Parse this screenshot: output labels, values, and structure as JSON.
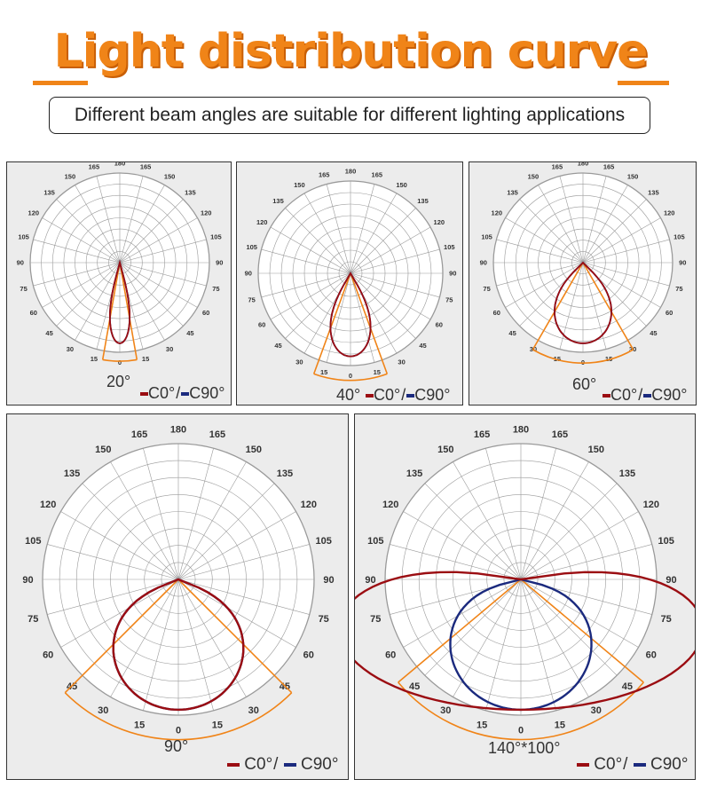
{
  "title": "Light distribution curve",
  "subtitle": "Different beam angles are suitable for different lighting applications",
  "colors": {
    "accent": "#f08418",
    "c0": "#9b0d12",
    "c90": "#1b2a7e",
    "grid": "#9a9a9a"
  },
  "legend": {
    "c0": "C0°",
    "sep": "/",
    "c90": "C90°"
  },
  "angle_labels": [
    "180",
    "165",
    "150",
    "135",
    "120",
    "105",
    "90",
    "75",
    "60",
    "45",
    "30",
    "15",
    "0",
    "15",
    "30",
    "45",
    "60",
    "75",
    "90",
    "105",
    "120",
    "135",
    "150",
    "165"
  ],
  "chart_data": [
    {
      "type": "polar",
      "beam_label": "20°",
      "beam_half_angle_deg": 10,
      "series": [
        {
          "name": "C0°",
          "half_angle_deg": 10,
          "lateral_extent": 1.0
        },
        {
          "name": "C90°",
          "half_angle_deg": 10,
          "lateral_extent": 1.0
        }
      ]
    },
    {
      "type": "polar",
      "beam_label": "40°",
      "beam_half_angle_deg": 20,
      "series": [
        {
          "name": "C0°",
          "half_angle_deg": 20,
          "lateral_extent": 1.0
        },
        {
          "name": "C90°",
          "half_angle_deg": 20,
          "lateral_extent": 1.0
        }
      ]
    },
    {
      "type": "polar",
      "beam_label": "60°",
      "beam_half_angle_deg": 30,
      "series": [
        {
          "name": "C0°",
          "half_angle_deg": 30,
          "lateral_extent": 1.0
        },
        {
          "name": "C90°",
          "half_angle_deg": 30,
          "lateral_extent": 1.0
        }
      ]
    },
    {
      "type": "polar",
      "beam_label": "90°",
      "beam_half_angle_deg": 45,
      "series": [
        {
          "name": "C0°",
          "half_angle_deg": 45,
          "lateral_extent": 1.0
        },
        {
          "name": "C90°",
          "half_angle_deg": 45,
          "lateral_extent": 1.0
        }
      ]
    },
    {
      "type": "polar",
      "beam_label": "140°*100°",
      "beam_half_angle_deg": 50,
      "series": [
        {
          "name": "C0°",
          "half_angle_deg": 70,
          "lateral_extent": 2.05
        },
        {
          "name": "C90°",
          "half_angle_deg": 50,
          "lateral_extent": 1.0
        }
      ]
    }
  ]
}
